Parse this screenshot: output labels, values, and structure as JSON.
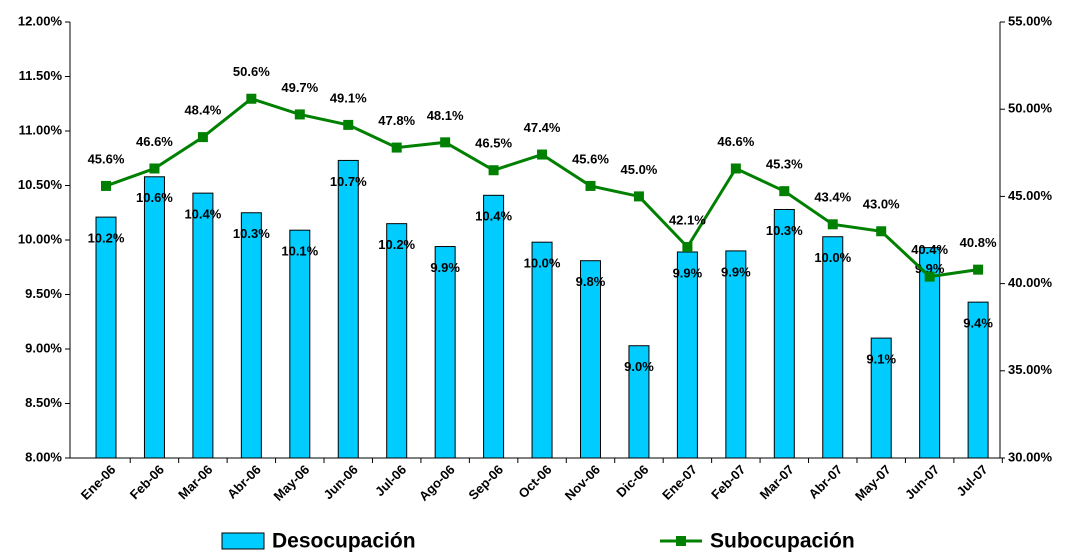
{
  "chart_data": {
    "type": "bar_line",
    "categories": [
      "Ene-06",
      "Feb-06",
      "Mar-06",
      "Abr-06",
      "May-06",
      "Jun-06",
      "Jul-06",
      "Ago-06",
      "Sep-06",
      "Oct-06",
      "Nov-06",
      "Dic-06",
      "Ene-07",
      "Feb-07",
      "Mar-07",
      "Abr-07",
      "May-07",
      "Jun-07",
      "Jul-07"
    ],
    "series": [
      {
        "name": "Desocupación",
        "type": "bar",
        "color": "#00ccff",
        "values": [
          10.21,
          10.58,
          10.43,
          10.25,
          10.09,
          10.73,
          10.15,
          9.94,
          10.41,
          9.98,
          9.81,
          9.03,
          9.89,
          9.9,
          10.28,
          10.03,
          9.1,
          9.93,
          9.43
        ],
        "value_labels": [
          "10.2%",
          "10.6%",
          "10.4%",
          "10.3%",
          "10.1%",
          "10.7%",
          "10.2%",
          "9.9%",
          "10.4%",
          "10.0%",
          "9.8%",
          "9.0%",
          "9.9%",
          "9.9%",
          "10.3%",
          "10.0%",
          "9.1%",
          "9.9%",
          "9.4%"
        ]
      },
      {
        "name": "Subocupación",
        "type": "line",
        "axis": "y2",
        "color": "#008000",
        "values": [
          45.6,
          46.6,
          48.4,
          50.6,
          49.7,
          49.1,
          47.8,
          48.1,
          46.5,
          47.4,
          45.6,
          45.0,
          42.1,
          46.6,
          45.3,
          43.4,
          43.0,
          40.4,
          40.8
        ],
        "value_labels": [
          "45.6%",
          "46.6%",
          "48.4%",
          "50.6%",
          "49.7%",
          "49.1%",
          "47.8%",
          "48.1%",
          "46.5%",
          "47.4%",
          "45.6%",
          "45.0%",
          "42.1%",
          "46.6%",
          "45.3%",
          "43.4%",
          "43.0%",
          "40.4%",
          "40.8%"
        ]
      }
    ],
    "ylim": [
      8,
      12
    ],
    "yticks": [
      {
        "value": 8,
        "label": "8.00%"
      },
      {
        "value": 8.5,
        "label": "8.50%"
      },
      {
        "value": 9,
        "label": "9.00%"
      },
      {
        "value": 9.5,
        "label": "9.50%"
      },
      {
        "value": 10,
        "label": "10.00%"
      },
      {
        "value": 10.5,
        "label": "10.50%"
      },
      {
        "value": 11,
        "label": "11.00%"
      },
      {
        "value": 11.5,
        "label": "11.50%"
      },
      {
        "value": 12,
        "label": "12.00%"
      }
    ],
    "y2lim": [
      30,
      55
    ],
    "y2ticks": [
      {
        "value": 30,
        "label": "30.00%"
      },
      {
        "value": 35,
        "label": "35.00%"
      },
      {
        "value": 40,
        "label": "40.00%"
      },
      {
        "value": 45,
        "label": "45.00%"
      },
      {
        "value": 50,
        "label": "50.00%"
      },
      {
        "value": 55,
        "label": "55.00%"
      }
    ]
  }
}
